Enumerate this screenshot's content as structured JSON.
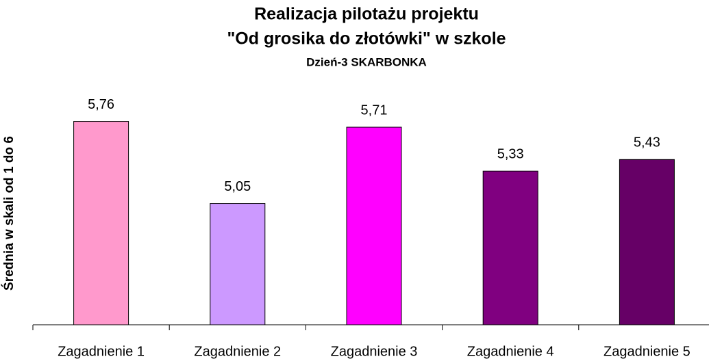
{
  "chart_data": {
    "type": "bar",
    "title": [
      "Realizacja pilotażu projektu",
      "\"Od grosika do złotówki\" w szkole"
    ],
    "subtitle": "Dzień-3 SKARBONKA",
    "y_label": "Średnia w skali od 1 do 6",
    "categories": [
      "Zagadnienie 1",
      "Zagadnienie 2",
      "Zagadnienie 3",
      "Zagadnienie 4",
      "Zagadnienie 5"
    ],
    "values": [
      5.76,
      5.05,
      5.71,
      5.33,
      5.43
    ],
    "value_labels": [
      "5,76",
      "5,05",
      "5,71",
      "5,33",
      "5,43"
    ],
    "colors": [
      "#ff99cc",
      "#cc99ff",
      "#ff00ff",
      "#800080",
      "#660066"
    ],
    "ylim": [
      4,
      6
    ]
  }
}
